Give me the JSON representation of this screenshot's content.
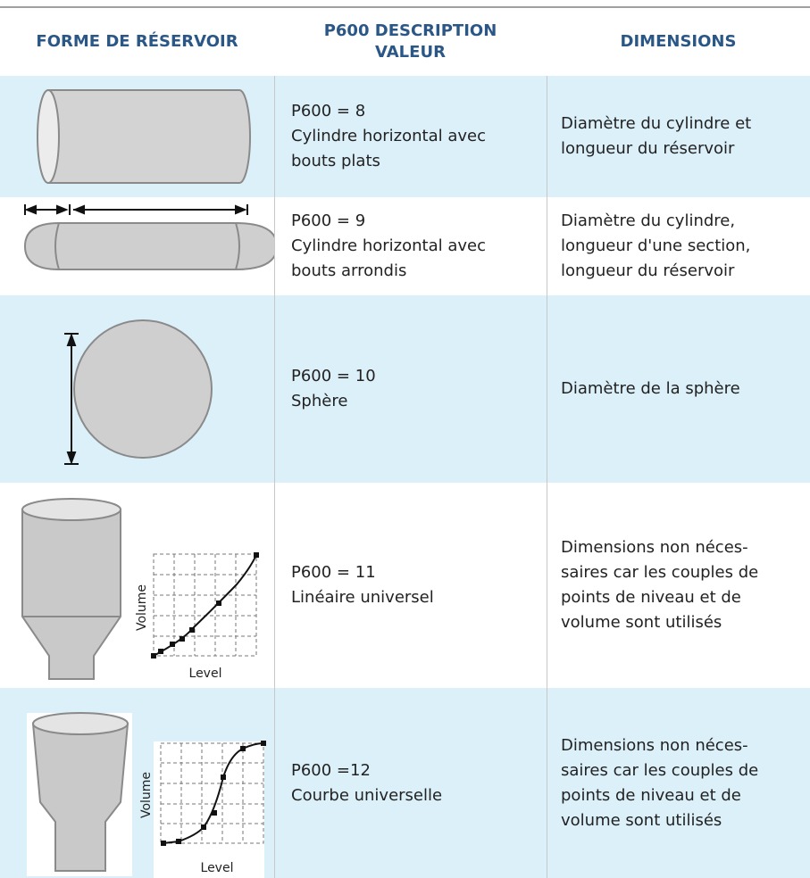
{
  "header": [
    "FORME DE RÉSERVOIR",
    [
      "P600 DESCRIPTION",
      "VALEUR"
    ],
    "DIMENSIONS"
  ],
  "rows": [
    {
      "description": [
        "P600 = 8",
        "Cylindre horizontal avec",
        "bouts plats"
      ],
      "dimensions": [
        "Diamètre du cylindre et",
        "longueur du réservoir"
      ]
    },
    {
      "description": [
        "P600 = 9",
        "Cylindre horizontal avec",
        "bouts arrondis"
      ],
      "dimensions": [
        "Diamètre du cylindre,",
        "longueur d'une section,",
        "longueur du réservoir"
      ]
    },
    {
      "description": [
        "P600 = 10",
        "Sphère"
      ],
      "dimensions": [
        "Diamètre de la sphère"
      ]
    },
    {
      "description": [
        "P600 = 11",
        "Linéaire universel"
      ],
      "dimensions": [
        "Dimensions non néces-",
        "saires car les couples de",
        "points de niveau et de",
        "volume sont utilisés"
      ],
      "graph": {
        "y_label": "Volume",
        "x_label": "Level"
      }
    },
    {
      "description": [
        "P600 =12",
        "Courbe universelle"
      ],
      "dimensions": [
        "Dimensions non néces-",
        "saires car les couples de",
        "points de niveau et de",
        "volume sont utilisés"
      ],
      "graph": {
        "y_label": "Volume",
        "x_label": "Level"
      }
    }
  ]
}
